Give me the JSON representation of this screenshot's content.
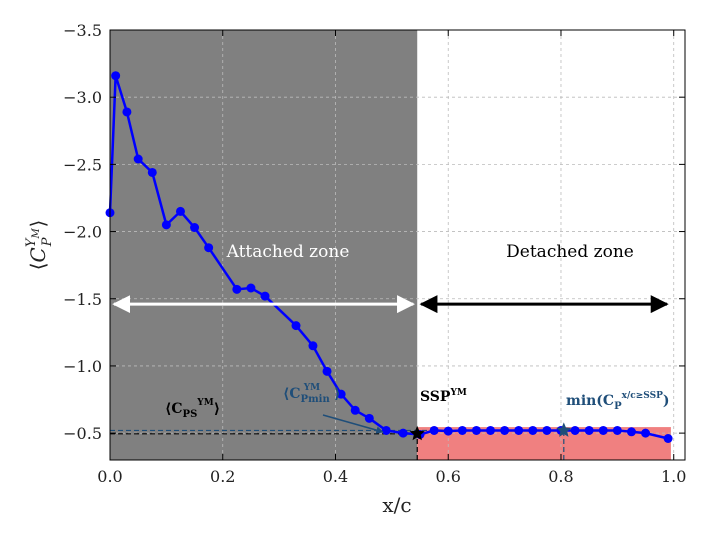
{
  "chart_data": {
    "type": "line",
    "xlabel": "x/c",
    "ylabel": "⟨C_P^{Y_M}⟩",
    "xlim": [
      0.0,
      1.02
    ],
    "ylim": [
      -0.3,
      -3.5
    ],
    "y_inverted": true,
    "grid": true,
    "xticks": [
      "0.0",
      "0.2",
      "0.4",
      "0.6",
      "0.8",
      "1.0"
    ],
    "yticks": [
      "−0.5",
      "−1.0",
      "−1.5",
      "−2.0",
      "−2.5",
      "−3.0",
      "−3.5"
    ],
    "series": [
      {
        "color": "#0000ff",
        "x": [
          0.0,
          0.01,
          0.03,
          0.05,
          0.075,
          0.1,
          0.125,
          0.15,
          0.175,
          0.225,
          0.25,
          0.275,
          0.33,
          0.36,
          0.385,
          0.41,
          0.435,
          0.46,
          0.49,
          0.52,
          0.55,
          0.575,
          0.6,
          0.625,
          0.65,
          0.675,
          0.7,
          0.725,
          0.75,
          0.775,
          0.8,
          0.825,
          0.85,
          0.875,
          0.9,
          0.925,
          0.95,
          0.99
        ],
        "y": [
          -2.14,
          -3.16,
          -2.89,
          -2.54,
          -2.44,
          -2.05,
          -2.15,
          -2.03,
          -1.88,
          -1.57,
          -1.58,
          -1.52,
          -1.3,
          -1.15,
          -0.96,
          -0.79,
          -0.67,
          -0.61,
          -0.52,
          -0.5,
          -0.49,
          -0.52,
          -0.515,
          -0.52,
          -0.52,
          -0.52,
          -0.52,
          -0.52,
          -0.52,
          -0.52,
          -0.52,
          -0.52,
          -0.52,
          -0.52,
          -0.52,
          -0.51,
          -0.5,
          -0.46
        ]
      }
    ],
    "attached_zone": {
      "x_end": 0.545,
      "color": "#808080",
      "label": "Attached zone"
    },
    "detached_zone": {
      "x_start": 0.545,
      "label": "Detached zone"
    },
    "arrow_y": -1.46,
    "ssp_point": {
      "x": 0.545,
      "y": -0.495
    },
    "min_point": {
      "x": 0.805,
      "y": -0.52
    },
    "ref_lines": [
      {
        "y": -0.495,
        "color": "#000000"
      },
      {
        "y": -0.52,
        "color": "#1f4e79"
      }
    ],
    "red_band": {
      "x_start": 0.545,
      "x_end": 0.995,
      "y_top": -0.545,
      "color": "#f08080"
    },
    "annotations": {
      "cps": "⟨C_PS^YM⟩",
      "cpmin": "⟨C_Pmin^YM⟩",
      "ssp": "SSP^YM",
      "min": "min(C_P^{x/c≥SSP})"
    }
  },
  "colors": {
    "line": "#0000ff",
    "annotation_blue": "#1f4e79"
  }
}
